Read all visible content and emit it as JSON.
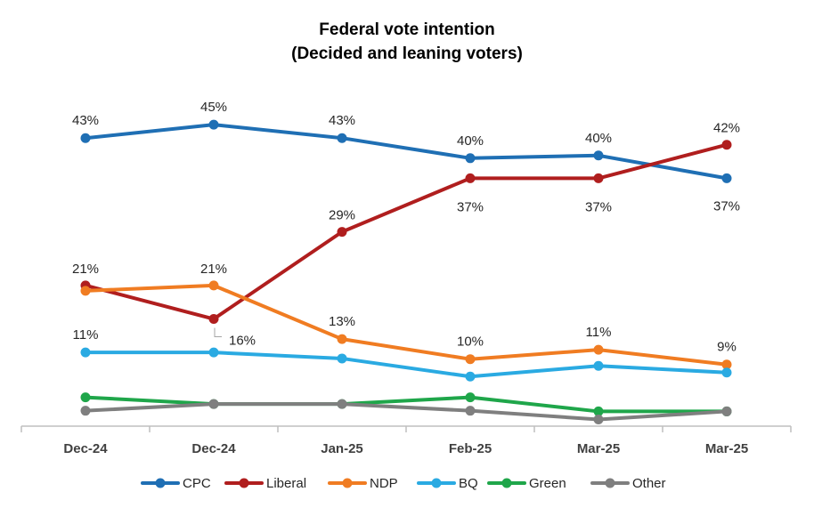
{
  "chart_data": {
    "type": "line",
    "title": "Federal vote intention",
    "subtitle": "(Decided and leaning voters)",
    "categories": [
      "Dec-24",
      "Dec-24",
      "Jan-25",
      "Feb-25",
      "Mar-25",
      "Mar-25"
    ],
    "ylim": [
      0,
      50
    ],
    "grid": false,
    "legend_position": "bottom",
    "series": [
      {
        "name": "CPC",
        "color": "#1F6FB4",
        "values": [
          43,
          45,
          43,
          40,
          40.4,
          37
        ],
        "labels": [
          "43%",
          "45%",
          "43%",
          "40%",
          "40%",
          "37%"
        ]
      },
      {
        "name": "Liberal",
        "color": "#B01E1E",
        "values": [
          21,
          16,
          29,
          37,
          37,
          42
        ],
        "labels": [
          "21%",
          "16%",
          "29%",
          "37%",
          "37%",
          "42%"
        ]
      },
      {
        "name": "NDP",
        "color": "#F07C22",
        "values": [
          20.2,
          21,
          13,
          10,
          11.4,
          9.2
        ],
        "labels": [
          "",
          "21%",
          "13%",
          "10%",
          "11%",
          "9%"
        ]
      },
      {
        "name": "BQ",
        "color": "#2AAAE2",
        "values": [
          11,
          11,
          10.1,
          7.4,
          9,
          8
        ],
        "labels": [
          "11%",
          "",
          "",
          "",
          "",
          ""
        ]
      },
      {
        "name": "Green",
        "color": "#1FA64A",
        "values": [
          4.3,
          3.3,
          3.3,
          4.3,
          2.2,
          2.2
        ],
        "labels": [
          "",
          "",
          "",
          "",
          "",
          ""
        ]
      },
      {
        "name": "Other",
        "color": "#7F7F7F",
        "values": [
          2.3,
          3.3,
          3.3,
          2.3,
          1,
          2.2
        ],
        "labels": [
          "",
          "",
          "",
          "",
          "",
          ""
        ]
      }
    ]
  }
}
